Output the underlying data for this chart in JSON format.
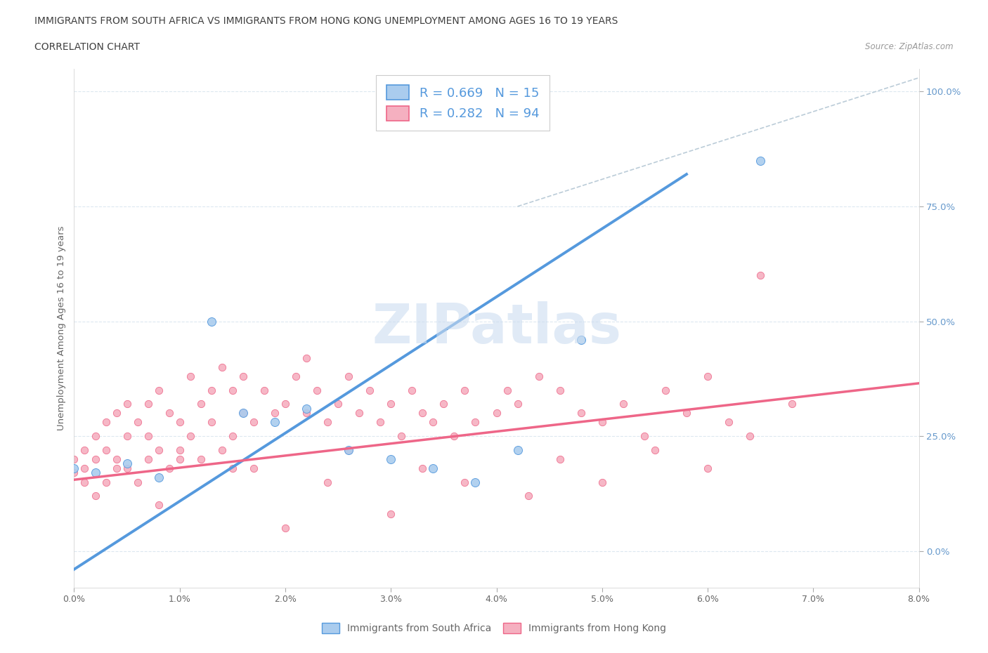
{
  "title_line1": "IMMIGRANTS FROM SOUTH AFRICA VS IMMIGRANTS FROM HONG KONG UNEMPLOYMENT AMONG AGES 16 TO 19 YEARS",
  "title_line2": "CORRELATION CHART",
  "source_text": "Source: ZipAtlas.com",
  "xlabel_ticks": [
    "0.0%",
    "1.0%",
    "2.0%",
    "3.0%",
    "4.0%",
    "5.0%",
    "6.0%",
    "7.0%",
    "8.0%"
  ],
  "ylabel_ticks": [
    "0.0%",
    "25.0%",
    "50.0%",
    "75.0%",
    "100.0%"
  ],
  "ylabel_label": "Unemployment Among Ages 16 to 19 years",
  "xmin": 0.0,
  "xmax": 0.08,
  "ymin": -0.08,
  "ymax": 1.05,
  "color_blue": "#aaccee",
  "color_pink": "#f5b0c0",
  "color_blue_line": "#5599dd",
  "color_pink_line": "#ee6688",
  "color_dashed": "#bbccd8",
  "legend1_label": "R = 0.669   N = 15",
  "legend2_label": "R = 0.282   N = 94",
  "legend_bottom_label1": "Immigrants from South Africa",
  "legend_bottom_label2": "Immigrants from Hong Kong",
  "blue_scatter_x": [
    0.0,
    0.002,
    0.005,
    0.008,
    0.013,
    0.016,
    0.019,
    0.022,
    0.026,
    0.03,
    0.034,
    0.038,
    0.042,
    0.048,
    0.065
  ],
  "blue_scatter_y": [
    0.18,
    0.17,
    0.19,
    0.16,
    0.5,
    0.3,
    0.28,
    0.31,
    0.22,
    0.2,
    0.18,
    0.15,
    0.22,
    0.46,
    0.85
  ],
  "pink_scatter_x": [
    0.0,
    0.0,
    0.001,
    0.001,
    0.001,
    0.002,
    0.002,
    0.002,
    0.003,
    0.003,
    0.003,
    0.004,
    0.004,
    0.004,
    0.005,
    0.005,
    0.005,
    0.006,
    0.006,
    0.007,
    0.007,
    0.007,
    0.008,
    0.008,
    0.009,
    0.009,
    0.01,
    0.01,
    0.011,
    0.011,
    0.012,
    0.012,
    0.013,
    0.013,
    0.014,
    0.014,
    0.015,
    0.015,
    0.016,
    0.016,
    0.017,
    0.018,
    0.019,
    0.02,
    0.02,
    0.021,
    0.022,
    0.022,
    0.023,
    0.024,
    0.025,
    0.026,
    0.027,
    0.028,
    0.029,
    0.03,
    0.03,
    0.031,
    0.032,
    0.033,
    0.034,
    0.035,
    0.036,
    0.037,
    0.038,
    0.04,
    0.041,
    0.042,
    0.044,
    0.046,
    0.048,
    0.05,
    0.052,
    0.054,
    0.056,
    0.058,
    0.06,
    0.062,
    0.065,
    0.068,
    0.05,
    0.043,
    0.033,
    0.024,
    0.015,
    0.008,
    0.01,
    0.017,
    0.026,
    0.037,
    0.046,
    0.055,
    0.064,
    0.06
  ],
  "pink_scatter_y": [
    0.2,
    0.17,
    0.22,
    0.15,
    0.18,
    0.25,
    0.12,
    0.2,
    0.28,
    0.15,
    0.22,
    0.2,
    0.3,
    0.18,
    0.25,
    0.32,
    0.18,
    0.28,
    0.15,
    0.25,
    0.32,
    0.2,
    0.22,
    0.35,
    0.18,
    0.3,
    0.22,
    0.28,
    0.25,
    0.38,
    0.2,
    0.32,
    0.28,
    0.35,
    0.22,
    0.4,
    0.25,
    0.35,
    0.3,
    0.38,
    0.28,
    0.35,
    0.3,
    0.32,
    0.05,
    0.38,
    0.3,
    0.42,
    0.35,
    0.28,
    0.32,
    0.38,
    0.3,
    0.35,
    0.28,
    0.32,
    0.08,
    0.25,
    0.35,
    0.3,
    0.28,
    0.32,
    0.25,
    0.35,
    0.28,
    0.3,
    0.35,
    0.32,
    0.38,
    0.35,
    0.3,
    0.28,
    0.32,
    0.25,
    0.35,
    0.3,
    0.38,
    0.28,
    0.6,
    0.32,
    0.15,
    0.12,
    0.18,
    0.15,
    0.18,
    0.1,
    0.2,
    0.18,
    0.22,
    0.15,
    0.2,
    0.22,
    0.25,
    0.18
  ],
  "blue_line_x": [
    0.0,
    0.058
  ],
  "blue_line_y": [
    -0.04,
    0.82
  ],
  "pink_line_x": [
    0.0,
    0.08
  ],
  "pink_line_y": [
    0.155,
    0.365
  ],
  "dashed_line_x": [
    0.042,
    0.08
  ],
  "dashed_line_y": [
    0.75,
    1.03
  ],
  "background_color": "#ffffff",
  "grid_color": "#dde8f0",
  "text_color_title": "#404040",
  "text_color_blue": "#5599dd",
  "text_color_right": "#6699cc",
  "watermark_text": "ZIPatlas",
  "watermark_color": "#ccddf0",
  "watermark_alpha": 0.6
}
